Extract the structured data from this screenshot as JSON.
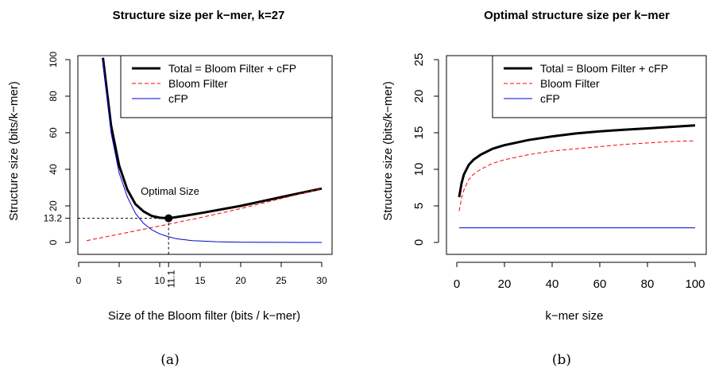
{
  "chart_data": [
    {
      "type": "line",
      "title": "Structure size per k−mer, k=27",
      "xlabel": "Size of the Bloom filter (bits / k−mer)",
      "ylabel": "Structure size (bits/k−mer)",
      "xlim": [
        0,
        30
      ],
      "ylim": [
        0,
        100
      ],
      "x_ticks": [
        0,
        5,
        10,
        15,
        20,
        25,
        30
      ],
      "y_ticks": [
        0,
        20,
        40,
        60,
        80,
        100
      ],
      "extra_x_tick": "11.1",
      "extra_y_tick": "13.2",
      "legend_position": "top-right",
      "caption": "(a)",
      "annotation": {
        "text": "Optimal Size",
        "x": 11.1,
        "y": 13.2
      },
      "series": [
        {
          "name": "Total = Bloom Filter + cFP",
          "color": "#000000",
          "style": "solid",
          "x": [
            3,
            4,
            5,
            6,
            7,
            8,
            9,
            10,
            11.1,
            13,
            15,
            20,
            25,
            30
          ],
          "y": [
            101,
            64,
            42,
            29,
            21,
            17,
            14.5,
            13.5,
            13.2,
            14.5,
            16,
            20,
            24.8,
            29.5
          ]
        },
        {
          "name": "Bloom Filter",
          "color": "#ff0000",
          "style": "dashed",
          "x": [
            1,
            5,
            10,
            15,
            20,
            25,
            30
          ],
          "y": [
            1,
            4.5,
            9,
            13.5,
            18.5,
            24,
            29.5
          ]
        },
        {
          "name": "cFP",
          "color": "#0000cc",
          "style": "solid",
          "x": [
            3,
            4,
            5,
            6,
            7,
            8,
            9,
            10,
            11,
            12,
            14,
            17,
            20,
            25,
            30
          ],
          "y": [
            100,
            60,
            38,
            25,
            16,
            10.5,
            7,
            4.7,
            3.2,
            2.1,
            1,
            0.4,
            0.15,
            0.05,
            0.02
          ]
        }
      ]
    },
    {
      "type": "line",
      "title": "Optimal structure size per k−mer",
      "xlabel": "k−mer size",
      "ylabel": "Structure size (bits/k−mer)",
      "xlim": [
        0,
        100
      ],
      "ylim": [
        0,
        25
      ],
      "x_ticks": [
        0,
        20,
        40,
        60,
        80,
        100
      ],
      "y_ticks": [
        0,
        5,
        10,
        15,
        20,
        25
      ],
      "legend_position": "top-right",
      "caption": "(b)",
      "series": [
        {
          "name": "Total = Bloom Filter + cFP",
          "color": "#000000",
          "style": "solid",
          "x": [
            1,
            2,
            3,
            5,
            7,
            10,
            15,
            20,
            30,
            40,
            50,
            60,
            70,
            80,
            90,
            100
          ],
          "y": [
            6.2,
            8.1,
            9.3,
            10.6,
            11.3,
            12.0,
            12.8,
            13.3,
            14.0,
            14.5,
            14.9,
            15.2,
            15.4,
            15.6,
            15.8,
            16.0
          ]
        },
        {
          "name": "Bloom Filter",
          "color": "#ff0000",
          "style": "dashed",
          "x": [
            1,
            2,
            3,
            5,
            7,
            10,
            15,
            20,
            30,
            40,
            50,
            60,
            70,
            80,
            90,
            100
          ],
          "y": [
            4.3,
            6.1,
            7.2,
            8.6,
            9.3,
            10.0,
            10.8,
            11.3,
            12.0,
            12.5,
            12.8,
            13.1,
            13.4,
            13.6,
            13.8,
            13.9
          ]
        },
        {
          "name": "cFP",
          "color": "#0000cc",
          "style": "solid",
          "x": [
            1,
            100
          ],
          "y": [
            2.0,
            2.0
          ]
        }
      ]
    }
  ]
}
